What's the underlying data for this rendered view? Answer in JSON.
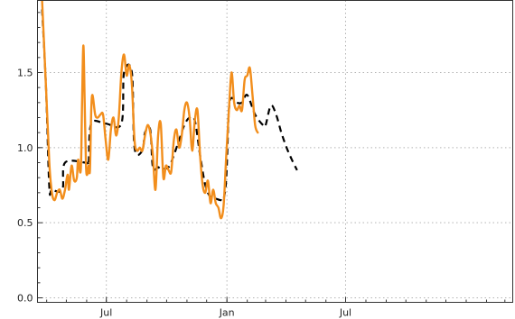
{
  "chart_data": {
    "type": "line",
    "title": "",
    "xlabel": "",
    "ylabel": "",
    "ylim": [
      -0.03,
      1.98
    ],
    "xlim": [
      "2020-03-18",
      "2022-03-13"
    ],
    "grid": true,
    "legend": "none",
    "x_ticks": [
      {
        "date": "2020-07-01",
        "label": "Jul"
      },
      {
        "date": "2021-01-01",
        "label": "Jan"
      },
      {
        "date": "2021-07-01",
        "label": "Jul"
      }
    ],
    "y_ticks": [
      {
        "value": 0.0,
        "label": "0.0"
      },
      {
        "value": 0.5,
        "label": "0.5"
      },
      {
        "value": 1.0,
        "label": "1.0"
      },
      {
        "value": 1.5,
        "label": "1.5"
      }
    ],
    "series": [
      {
        "name": "",
        "color": "#f28e1c",
        "style": "solid",
        "points": [
          [
            "2020-03-25",
            1.98
          ],
          [
            "2020-03-31",
            1.4
          ],
          [
            "2020-04-05",
            0.9
          ],
          [
            "2020-04-09",
            0.7
          ],
          [
            "2020-04-13",
            0.65
          ],
          [
            "2020-04-17",
            0.7
          ],
          [
            "2020-04-21",
            0.72
          ],
          [
            "2020-04-25",
            0.66
          ],
          [
            "2020-04-29",
            0.72
          ],
          [
            "2020-05-03",
            0.82
          ],
          [
            "2020-05-05",
            0.72
          ],
          [
            "2020-05-09",
            0.88
          ],
          [
            "2020-05-13",
            0.78
          ],
          [
            "2020-05-17",
            0.8
          ],
          [
            "2020-05-19",
            0.92
          ],
          [
            "2020-05-23",
            0.85
          ],
          [
            "2020-05-25",
            1.3
          ],
          [
            "2020-05-27",
            1.68
          ],
          [
            "2020-05-29",
            1.3
          ],
          [
            "2020-05-31",
            0.88
          ],
          [
            "2020-06-02",
            0.82
          ],
          [
            "2020-06-04",
            0.88
          ],
          [
            "2020-06-06",
            0.85
          ],
          [
            "2020-06-08",
            1.25
          ],
          [
            "2020-06-10",
            1.35
          ],
          [
            "2020-06-14",
            1.22
          ],
          [
            "2020-06-18",
            1.2
          ],
          [
            "2020-06-22",
            1.22
          ],
          [
            "2020-06-26",
            1.22
          ],
          [
            "2020-06-30",
            1.05
          ],
          [
            "2020-07-04",
            0.92
          ],
          [
            "2020-07-08",
            1.12
          ],
          [
            "2020-07-12",
            1.2
          ],
          [
            "2020-07-16",
            1.08
          ],
          [
            "2020-07-20",
            1.2
          ],
          [
            "2020-07-24",
            1.5
          ],
          [
            "2020-07-28",
            1.62
          ],
          [
            "2020-08-01",
            1.48
          ],
          [
            "2020-08-05",
            1.55
          ],
          [
            "2020-08-09",
            1.42
          ],
          [
            "2020-08-13",
            1.05
          ],
          [
            "2020-08-17",
            0.98
          ],
          [
            "2020-08-21",
            1.0
          ],
          [
            "2020-08-25",
            0.98
          ],
          [
            "2020-08-29",
            1.08
          ],
          [
            "2020-09-02",
            1.15
          ],
          [
            "2020-09-06",
            1.1
          ],
          [
            "2020-09-10",
            0.95
          ],
          [
            "2020-09-14",
            0.72
          ],
          [
            "2020-09-18",
            1.08
          ],
          [
            "2020-09-22",
            1.16
          ],
          [
            "2020-09-26",
            0.8
          ],
          [
            "2020-09-30",
            0.88
          ],
          [
            "2020-10-04",
            0.85
          ],
          [
            "2020-10-08",
            0.84
          ],
          [
            "2020-10-12",
            1.05
          ],
          [
            "2020-10-16",
            1.12
          ],
          [
            "2020-10-20",
            1.0
          ],
          [
            "2020-10-24",
            1.08
          ],
          [
            "2020-10-28",
            1.25
          ],
          [
            "2020-11-01",
            1.3
          ],
          [
            "2020-11-05",
            1.2
          ],
          [
            "2020-11-09",
            0.98
          ],
          [
            "2020-11-13",
            1.18
          ],
          [
            "2020-11-17",
            1.25
          ],
          [
            "2020-11-21",
            0.95
          ],
          [
            "2020-11-25",
            0.75
          ],
          [
            "2020-11-29",
            0.7
          ],
          [
            "2020-12-03",
            0.78
          ],
          [
            "2020-12-07",
            0.63
          ],
          [
            "2020-12-11",
            0.72
          ],
          [
            "2020-12-15",
            0.63
          ],
          [
            "2020-12-19",
            0.6
          ],
          [
            "2020-12-23",
            0.53
          ],
          [
            "2020-12-27",
            0.62
          ],
          [
            "2020-12-31",
            0.95
          ],
          [
            "2021-01-04",
            1.25
          ],
          [
            "2021-01-08",
            1.5
          ],
          [
            "2021-01-12",
            1.3
          ],
          [
            "2021-01-16",
            1.25
          ],
          [
            "2021-01-20",
            1.28
          ],
          [
            "2021-01-24",
            1.25
          ],
          [
            "2021-01-28",
            1.45
          ],
          [
            "2021-02-01",
            1.48
          ],
          [
            "2021-02-05",
            1.53
          ],
          [
            "2021-02-09",
            1.35
          ],
          [
            "2021-02-13",
            1.15
          ],
          [
            "2021-02-17",
            1.1
          ]
        ]
      },
      {
        "name": "",
        "color": "#000000",
        "style": "dashed",
        "points": [
          [
            "2020-03-25",
            1.92
          ],
          [
            "2020-03-31",
            1.4
          ],
          [
            "2020-04-05",
            0.74
          ],
          [
            "2020-04-09",
            0.72
          ],
          [
            "2020-04-25",
            0.72
          ],
          [
            "2020-04-29",
            0.9
          ],
          [
            "2020-05-31",
            0.9
          ],
          [
            "2020-06-04",
            0.9
          ],
          [
            "2020-06-08",
            1.16
          ],
          [
            "2020-06-30",
            1.16
          ],
          [
            "2020-07-24",
            1.16
          ],
          [
            "2020-07-28",
            1.5
          ],
          [
            "2020-08-09",
            1.5
          ],
          [
            "2020-08-13",
            1.0
          ],
          [
            "2020-08-25",
            0.98
          ],
          [
            "2020-08-29",
            1.1
          ],
          [
            "2020-09-06",
            1.12
          ],
          [
            "2020-09-10",
            0.87
          ],
          [
            "2020-09-18",
            0.87
          ],
          [
            "2020-09-22",
            0.86
          ],
          [
            "2020-10-04",
            0.87
          ],
          [
            "2020-10-12",
            0.95
          ],
          [
            "2020-10-20",
            1.05
          ],
          [
            "2020-10-28",
            1.15
          ],
          [
            "2020-11-05",
            1.2
          ],
          [
            "2020-11-13",
            1.18
          ],
          [
            "2020-11-21",
            0.95
          ],
          [
            "2020-11-29",
            0.75
          ],
          [
            "2020-12-07",
            0.67
          ],
          [
            "2020-12-15",
            0.66
          ],
          [
            "2020-12-23",
            0.65
          ],
          [
            "2020-12-27",
            0.66
          ],
          [
            "2020-12-31",
            0.8
          ],
          [
            "2021-01-04",
            1.25
          ],
          [
            "2021-01-08",
            1.33
          ],
          [
            "2021-01-16",
            1.3
          ],
          [
            "2021-01-24",
            1.3
          ],
          [
            "2021-02-01",
            1.35
          ],
          [
            "2021-02-13",
            1.22
          ],
          [
            "2021-02-25",
            1.15
          ],
          [
            "2021-03-01",
            1.15
          ],
          [
            "2021-03-09",
            1.28
          ],
          [
            "2021-03-17",
            1.22
          ],
          [
            "2021-03-25",
            1.1
          ],
          [
            "2021-04-02",
            1.0
          ],
          [
            "2021-04-10",
            0.92
          ],
          [
            "2021-04-18",
            0.85
          ]
        ]
      }
    ]
  }
}
